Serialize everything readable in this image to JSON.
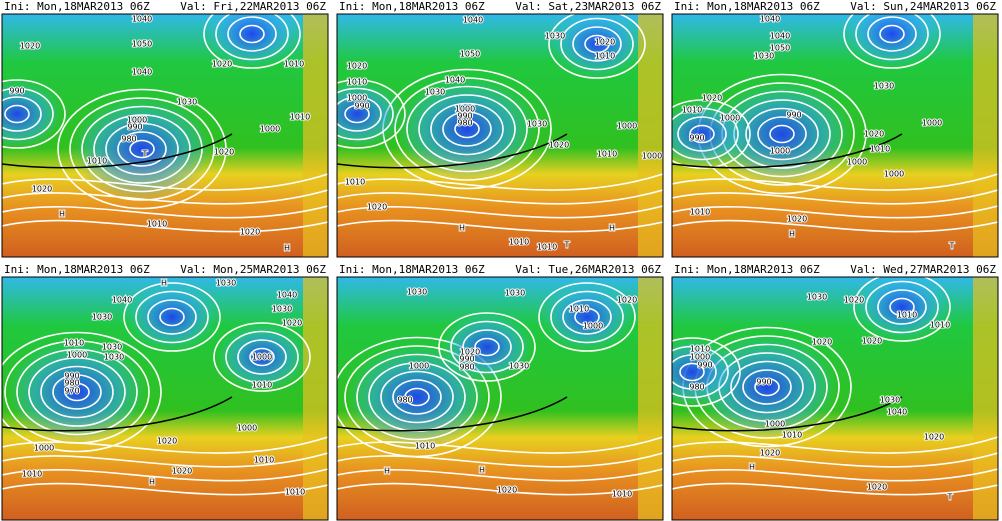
{
  "panels": [
    {
      "init": "Ini: Mon,18MAR2013 06Z",
      "valid": "Val: Fri,22MAR2013 06Z",
      "labels": [
        "1040",
        "1050",
        "1020",
        "1040",
        "1030",
        "1000",
        "990",
        "980",
        "1010",
        "1020",
        "H",
        "1010",
        "1020",
        "1020",
        "1010",
        "1010",
        "1000",
        "1020",
        "990",
        "H",
        "T"
      ]
    },
    {
      "init": "Ini: Mon,18MAR2013 06Z",
      "valid": "Val: Sat,23MAR2013 06Z",
      "labels": [
        "1040",
        "1030",
        "1020",
        "1010",
        "1020",
        "1010",
        "1000",
        "990",
        "1050",
        "1040",
        "1030",
        "1000",
        "990",
        "980",
        "1030",
        "1020",
        "1010",
        "1000",
        "1000",
        "1010",
        "1020",
        "H",
        "1010",
        "1010",
        "T",
        "H"
      ]
    },
    {
      "init": "Ini: Mon,18MAR2013 06Z",
      "valid": "Val: Sun,24MAR2013 06Z",
      "labels": [
        "1040",
        "1040",
        "1050",
        "1030",
        "1020",
        "1010",
        "1000",
        "990",
        "990",
        "1000",
        "1030",
        "1020",
        "1010",
        "1000",
        "1000",
        "1000",
        "1010",
        "1020",
        "H",
        "T"
      ]
    },
    {
      "init": "Ini: Mon,18MAR2013 06Z",
      "valid": "Val: Mon,25MAR2013 06Z",
      "labels": [
        "H",
        "1030",
        "1040",
        "1040",
        "1030",
        "1020",
        "1030",
        "1010",
        "1000",
        "1030",
        "1030",
        "990",
        "980",
        "970",
        "1000",
        "1010",
        "1000",
        "1020",
        "1010",
        "1000",
        "1010",
        "H",
        "1010",
        "1020"
      ]
    },
    {
      "init": "Ini: Mon,18MAR2013 06Z",
      "valid": "Val: Tue,26MAR2013 06Z",
      "labels": [
        "1030",
        "1030",
        "1020",
        "1010",
        "1000",
        "1000",
        "990",
        "980",
        "1020",
        "980",
        "1030",
        "1010",
        "H",
        "H",
        "1020",
        "1010"
      ]
    },
    {
      "init": "Ini: Mon,18MAR2013 06Z",
      "valid": "Val: Wed,27MAR2013 06Z",
      "labels": [
        "1030",
        "1020",
        "1010",
        "1010",
        "1010",
        "1000",
        "990",
        "980",
        "990",
        "1020",
        "1020",
        "1000",
        "1010",
        "1030",
        "1040",
        "1020",
        "1020",
        "H",
        "1020",
        "T"
      ]
    }
  ]
}
